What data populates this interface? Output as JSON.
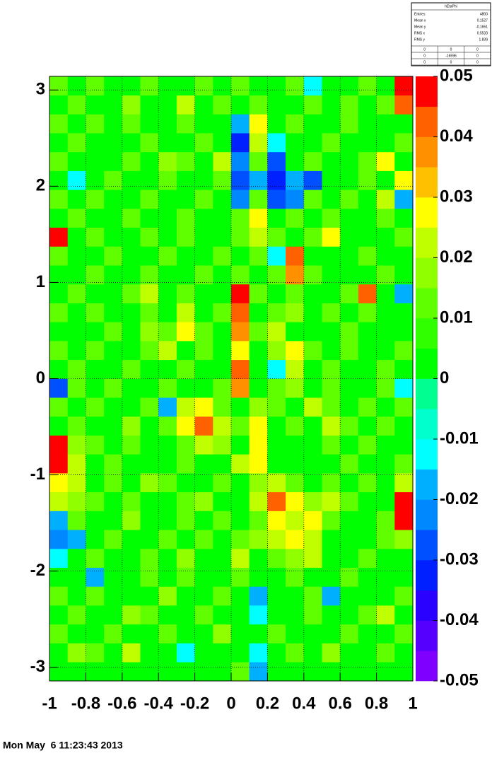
{
  "chart_data": {
    "type": "heatmap",
    "stats": {
      "title": "hEtaPhi",
      "rows": [
        [
          "Entries",
          "4800"
        ],
        [
          "Mean x",
          "0.1527"
        ],
        [
          "Mean y",
          "-0.1651"
        ],
        [
          "RMS x",
          "0.5533"
        ],
        [
          "RMS y",
          "1.839"
        ]
      ],
      "grid": [
        [
          "0",
          "0",
          "0"
        ],
        [
          "0",
          "-16596",
          "0"
        ],
        [
          "0",
          "0",
          "0"
        ]
      ]
    },
    "xlim": [
      -1,
      1
    ],
    "xticks": [
      -1,
      -0.8,
      -0.6,
      -0.4,
      -0.2,
      0,
      0.2,
      0.4,
      0.6,
      0.8,
      1
    ],
    "ylim": [
      -3.1416,
      3.1416
    ],
    "yticks": [
      -3,
      -2,
      -1,
      0,
      1,
      2,
      3
    ],
    "zlim": [
      -0.05,
      0.05
    ],
    "zticks": [
      -0.05,
      -0.04,
      -0.03,
      -0.02,
      -0.01,
      0,
      0.01,
      0.02,
      0.03,
      0.04,
      0.05
    ],
    "grid": true,
    "palette": [
      "#7f00ff",
      "#5500ff",
      "#2a00ff",
      "#0020ff",
      "#0050ff",
      "#0088ff",
      "#00b0ff",
      "#00ffff",
      "#00ffcc",
      "#00ff90",
      "#00ff00",
      "#30ff00",
      "#60ff00",
      "#90ff00",
      "#c0ff00",
      "#ffff00",
      "#ffc000",
      "#ff9000",
      "#ff6000",
      "#ff0000"
    ],
    "z": [
      [
        0,
        0.005,
        0,
        0.005,
        0,
        0.005,
        0,
        0,
        0.005,
        0,
        0.01,
        -0.02,
        0,
        0.005,
        0,
        0,
        0.005,
        0,
        0,
        0.005
      ],
      [
        0.005,
        0.015,
        0.01,
        0,
        0.02,
        0.005,
        0,
        -0.01,
        0.005,
        0,
        0.005,
        -0.015,
        0.005,
        0.01,
        0,
        0.015,
        0,
        0.005,
        0.01,
        0
      ],
      [
        0.01,
        0,
        0.005,
        0.01,
        0.005,
        0,
        0.01,
        0.005,
        0,
        0.015,
        0,
        0.005,
        0.01,
        0,
        0.005,
        0,
        0.01,
        0.005,
        0,
        0.01
      ],
      [
        0.005,
        0.01,
        0,
        0.005,
        0.015,
        0.01,
        0,
        0.005,
        0.01,
        0,
        0.005,
        -0.01,
        0,
        0.005,
        0.01,
        0.005,
        0,
        0.01,
        0.02,
        0.005
      ],
      [
        0.01,
        0.005,
        0.01,
        0,
        0.005,
        0,
        0.015,
        0,
        0.005,
        0.01,
        0,
        -0.02,
        0.005,
        0,
        0.01,
        -0.02,
        0.005,
        0,
        0.005,
        0.01
      ],
      [
        0,
        0.005,
        -0.02,
        0.005,
        0,
        0.01,
        0.005,
        0.01,
        0,
        0.005,
        0.01,
        0,
        0.005,
        0.01,
        0,
        0.005,
        0.01,
        0,
        0.005,
        0
      ],
      [
        -0.015,
        0.005,
        0.01,
        0,
        0.005,
        0.01,
        0,
        0.015,
        0.005,
        0,
        0.02,
        0.005,
        0.01,
        0.015,
        0.02,
        0,
        0.005,
        0.01,
        0,
        0.005
      ],
      [
        -0.025,
        -0.02,
        0.005,
        0.01,
        0,
        0.005,
        0.01,
        0,
        0.01,
        0.005,
        0.01,
        0.015,
        0.02,
        0.025,
        0.02,
        0.005,
        0,
        0.005,
        0.01,
        0.015
      ],
      [
        -0.02,
        0.01,
        0.005,
        0,
        0.015,
        0.005,
        0,
        0.01,
        0.005,
        0.01,
        0,
        0.01,
        0.025,
        0.02,
        0.03,
        0.01,
        0.005,
        0,
        0.01,
        0.05
      ],
      [
        0.02,
        0.015,
        0.01,
        0.005,
        0.01,
        0,
        0.005,
        0.01,
        0.015,
        0,
        0.005,
        0.02,
        0.04,
        0.03,
        0.015,
        0.02,
        0.01,
        0.005,
        0,
        0.05
      ],
      [
        0.025,
        0.02,
        0.005,
        0.01,
        0,
        0.015,
        0.01,
        0.005,
        0,
        0.01,
        0.005,
        0.015,
        0.02,
        0.01,
        0.005,
        0.01,
        0.005,
        0.01,
        0.005,
        0.02
      ],
      [
        0.05,
        0.02,
        0.005,
        0.01,
        0.005,
        0,
        0.005,
        0.01,
        0.005,
        0,
        0.02,
        0.025,
        0,
        0,
        0,
        0.005,
        0.01,
        0,
        0.005,
        0.01
      ],
      [
        0.05,
        0.015,
        0.01,
        0.005,
        0.01,
        0.005,
        0,
        0.01,
        0.02,
        0.015,
        0.005,
        0.025,
        0,
        0,
        0,
        0.01,
        0.005,
        0.01,
        0,
        0.005
      ],
      [
        0.005,
        0.01,
        0,
        0.005,
        0.015,
        0,
        0.01,
        0.03,
        0.04,
        0.02,
        0.01,
        0.03,
        0.005,
        0.01,
        0.005,
        0.02,
        0.01,
        0.005,
        0.01,
        0
      ],
      [
        0.01,
        0.005,
        0.01,
        0,
        0.005,
        0.01,
        -0.02,
        0.02,
        0.03,
        0.01,
        0,
        0.015,
        0.01,
        0.005,
        0.02,
        0.01,
        0,
        0.01,
        0.005,
        0.01
      ],
      [
        -0.03,
        0.01,
        0.005,
        0.01,
        0,
        0.005,
        0.01,
        0,
        0.005,
        0.01,
        0.035,
        0.005,
        0.01,
        0.015,
        0.005,
        0.01,
        0.005,
        0,
        0.01,
        -0.015
      ],
      [
        0.005,
        0.01,
        0,
        0.005,
        0.01,
        0,
        0.005,
        0.01,
        0,
        0.005,
        0.04,
        0,
        -0.01,
        0.02,
        0.005,
        0.01,
        0,
        0.005,
        0.01,
        0.005
      ],
      [
        0.01,
        0.005,
        0.01,
        0,
        0.005,
        0.01,
        0.02,
        0.005,
        0.01,
        0,
        0.03,
        0.005,
        0.015,
        0.025,
        0.01,
        0,
        0.01,
        0.005,
        0,
        0.01
      ],
      [
        0.005,
        0,
        0.005,
        0.01,
        0.005,
        0.015,
        0.01,
        0.025,
        0.01,
        0.005,
        0.035,
        0.01,
        0.02,
        0.005,
        0,
        0.005,
        0.01,
        0,
        0.005,
        0.005
      ],
      [
        0.01,
        0.005,
        0.01,
        0.005,
        0,
        0.01,
        0.005,
        0.02,
        0.005,
        0.01,
        0.04,
        0.005,
        0.01,
        0.015,
        0.005,
        0.01,
        0.005,
        0.01,
        0.005,
        0
      ],
      [
        0.005,
        0.01,
        0,
        0.005,
        0.01,
        0.02,
        0.005,
        0.01,
        0,
        0.005,
        0.045,
        0.01,
        0.005,
        0.01,
        0,
        0.005,
        0.01,
        0.04,
        0.005,
        -0.02
      ],
      [
        0,
        0.005,
        0.01,
        0,
        0.005,
        0.01,
        0,
        0.005,
        0.01,
        0,
        0.01,
        0.005,
        0.01,
        0.035,
        0.01,
        0.005,
        0,
        0.005,
        0.01,
        0.005
      ],
      [
        0.01,
        0.005,
        0.005,
        0.01,
        0,
        0.005,
        0.01,
        0,
        0.005,
        0.01,
        0.005,
        0.01,
        -0.015,
        0.04,
        0.005,
        0,
        0.005,
        0.01,
        0,
        0.005
      ],
      [
        0.045,
        0.005,
        0.01,
        0,
        0.005,
        0.01,
        0.005,
        0.01,
        0,
        0.005,
        0.01,
        0.02,
        0.01,
        0.005,
        0.01,
        0.03,
        0.005,
        0,
        0.005,
        0.01
      ],
      [
        0.005,
        0.01,
        0,
        0.005,
        0.01,
        0,
        0.005,
        0.01,
        0.005,
        0,
        0.01,
        0.03,
        0.005,
        0.01,
        0.005,
        0.01,
        0,
        0.005,
        0.01,
        0
      ],
      [
        0.01,
        0.005,
        0.01,
        0.005,
        0,
        0.01,
        0.005,
        0,
        0.01,
        0.005,
        -0.025,
        0.01,
        -0.03,
        -0.025,
        0.01,
        0.005,
        0.01,
        0.005,
        0.02,
        -0.02
      ],
      [
        0.005,
        -0.01,
        0.005,
        0.01,
        0.005,
        0,
        0.01,
        0.005,
        0,
        0.01,
        -0.03,
        -0.02,
        -0.035,
        -0.02,
        -0.03,
        0.005,
        0,
        0.01,
        0.005,
        0.025
      ],
      [
        0.01,
        0.005,
        0,
        0.005,
        0.01,
        0.005,
        0.015,
        0.01,
        0.005,
        0.02,
        -0.025,
        0.01,
        -0.03,
        0.005,
        0.01,
        0,
        0.005,
        0.01,
        0.025,
        0.005
      ],
      [
        0.005,
        0.01,
        0.005,
        0,
        0.005,
        0.01,
        0,
        0.005,
        0.01,
        0.005,
        -0.035,
        0.02,
        -0.01,
        0.005,
        0,
        0.01,
        0.005,
        0,
        0.005,
        0.01
      ],
      [
        0.01,
        0.005,
        0.01,
        0.005,
        0.01,
        0,
        0.005,
        0.01,
        0,
        0.005,
        -0.02,
        0.025,
        0.005,
        0.01,
        0.005,
        0,
        0.01,
        0.005,
        0,
        0.005
      ],
      [
        0.005,
        0.01,
        0,
        0.005,
        0.015,
        0.005,
        0,
        0.02,
        0.005,
        0.01,
        0.005,
        0.01,
        0.005,
        0,
        0.01,
        0.005,
        0.01,
        0.005,
        0.01,
        0.04
      ],
      [
        0.01,
        0.005,
        0.01,
        0,
        0.005,
        0.01,
        0.005,
        0,
        0.01,
        0.005,
        0.01,
        0,
        0.005,
        0.01,
        -0.01,
        0.005,
        0,
        0.01,
        0.005,
        0.045
      ]
    ],
    "date": "Mon May  6 11:23:43 2013"
  }
}
